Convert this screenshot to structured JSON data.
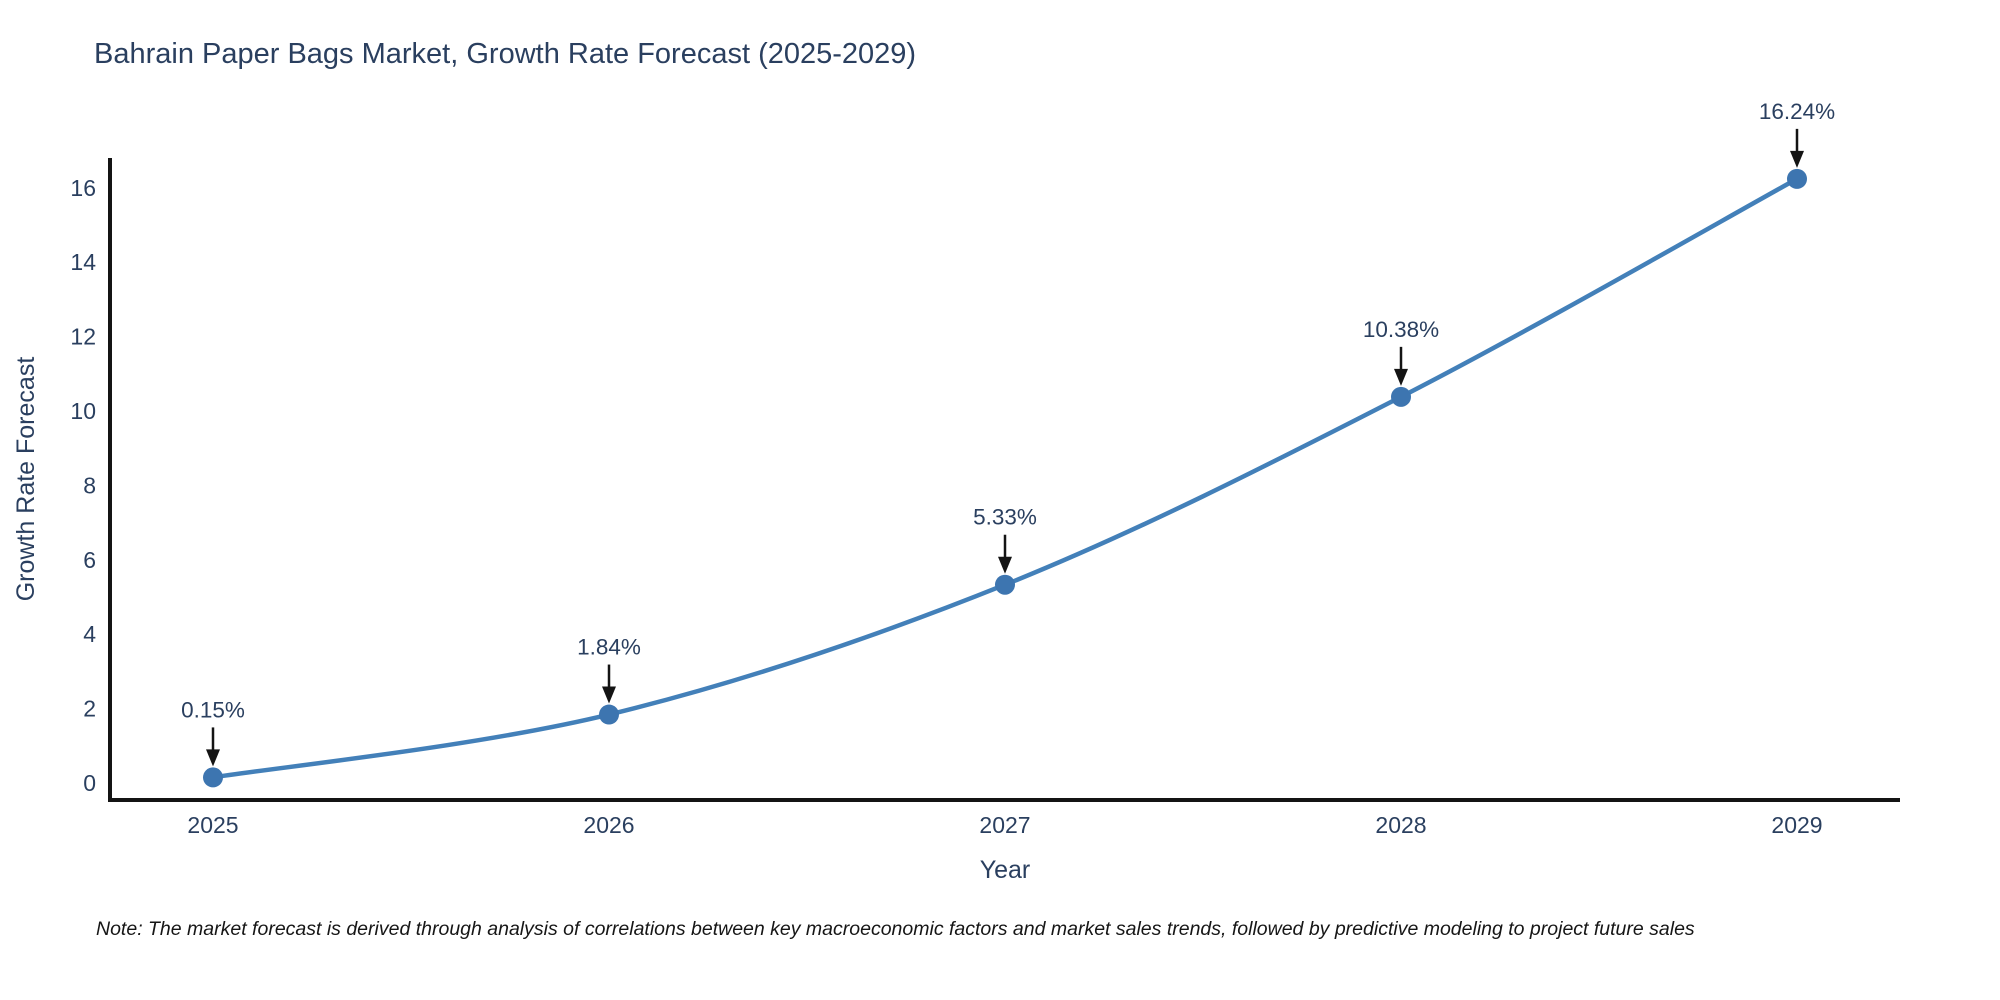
{
  "title": "Bahrain Paper Bags Market, Growth Rate Forecast (2025-2029)",
  "note": "Note: The market forecast is derived through analysis of correlations between key macroeconomic factors and market sales trends, followed by predictive modeling to project future sales",
  "chart_data": {
    "type": "line",
    "title": "Bahrain Paper Bags Market, Growth Rate Forecast (2025-2029)",
    "xlabel": "Year",
    "ylabel": "Growth Rate Forecast",
    "x": [
      2025,
      2026,
      2027,
      2028,
      2029
    ],
    "values": [
      0.15,
      1.84,
      5.33,
      10.38,
      16.24
    ],
    "point_labels": [
      "0.15%",
      "1.84%",
      "5.33%",
      "10.38%",
      "16.24%"
    ],
    "y_ticks": [
      0,
      2,
      4,
      6,
      8,
      10,
      12,
      14,
      16
    ],
    "xlim": [
      2024.72,
      2029.28
    ],
    "ylim": [
      -0.5,
      16.8
    ],
    "grid": false,
    "legend": "none",
    "line_shape": "spline",
    "colors": {
      "line": "#4380b9",
      "marker": "#3d75b0",
      "arrow": "#141414",
      "axis": "#141414",
      "text": "#2a3f5f"
    }
  }
}
